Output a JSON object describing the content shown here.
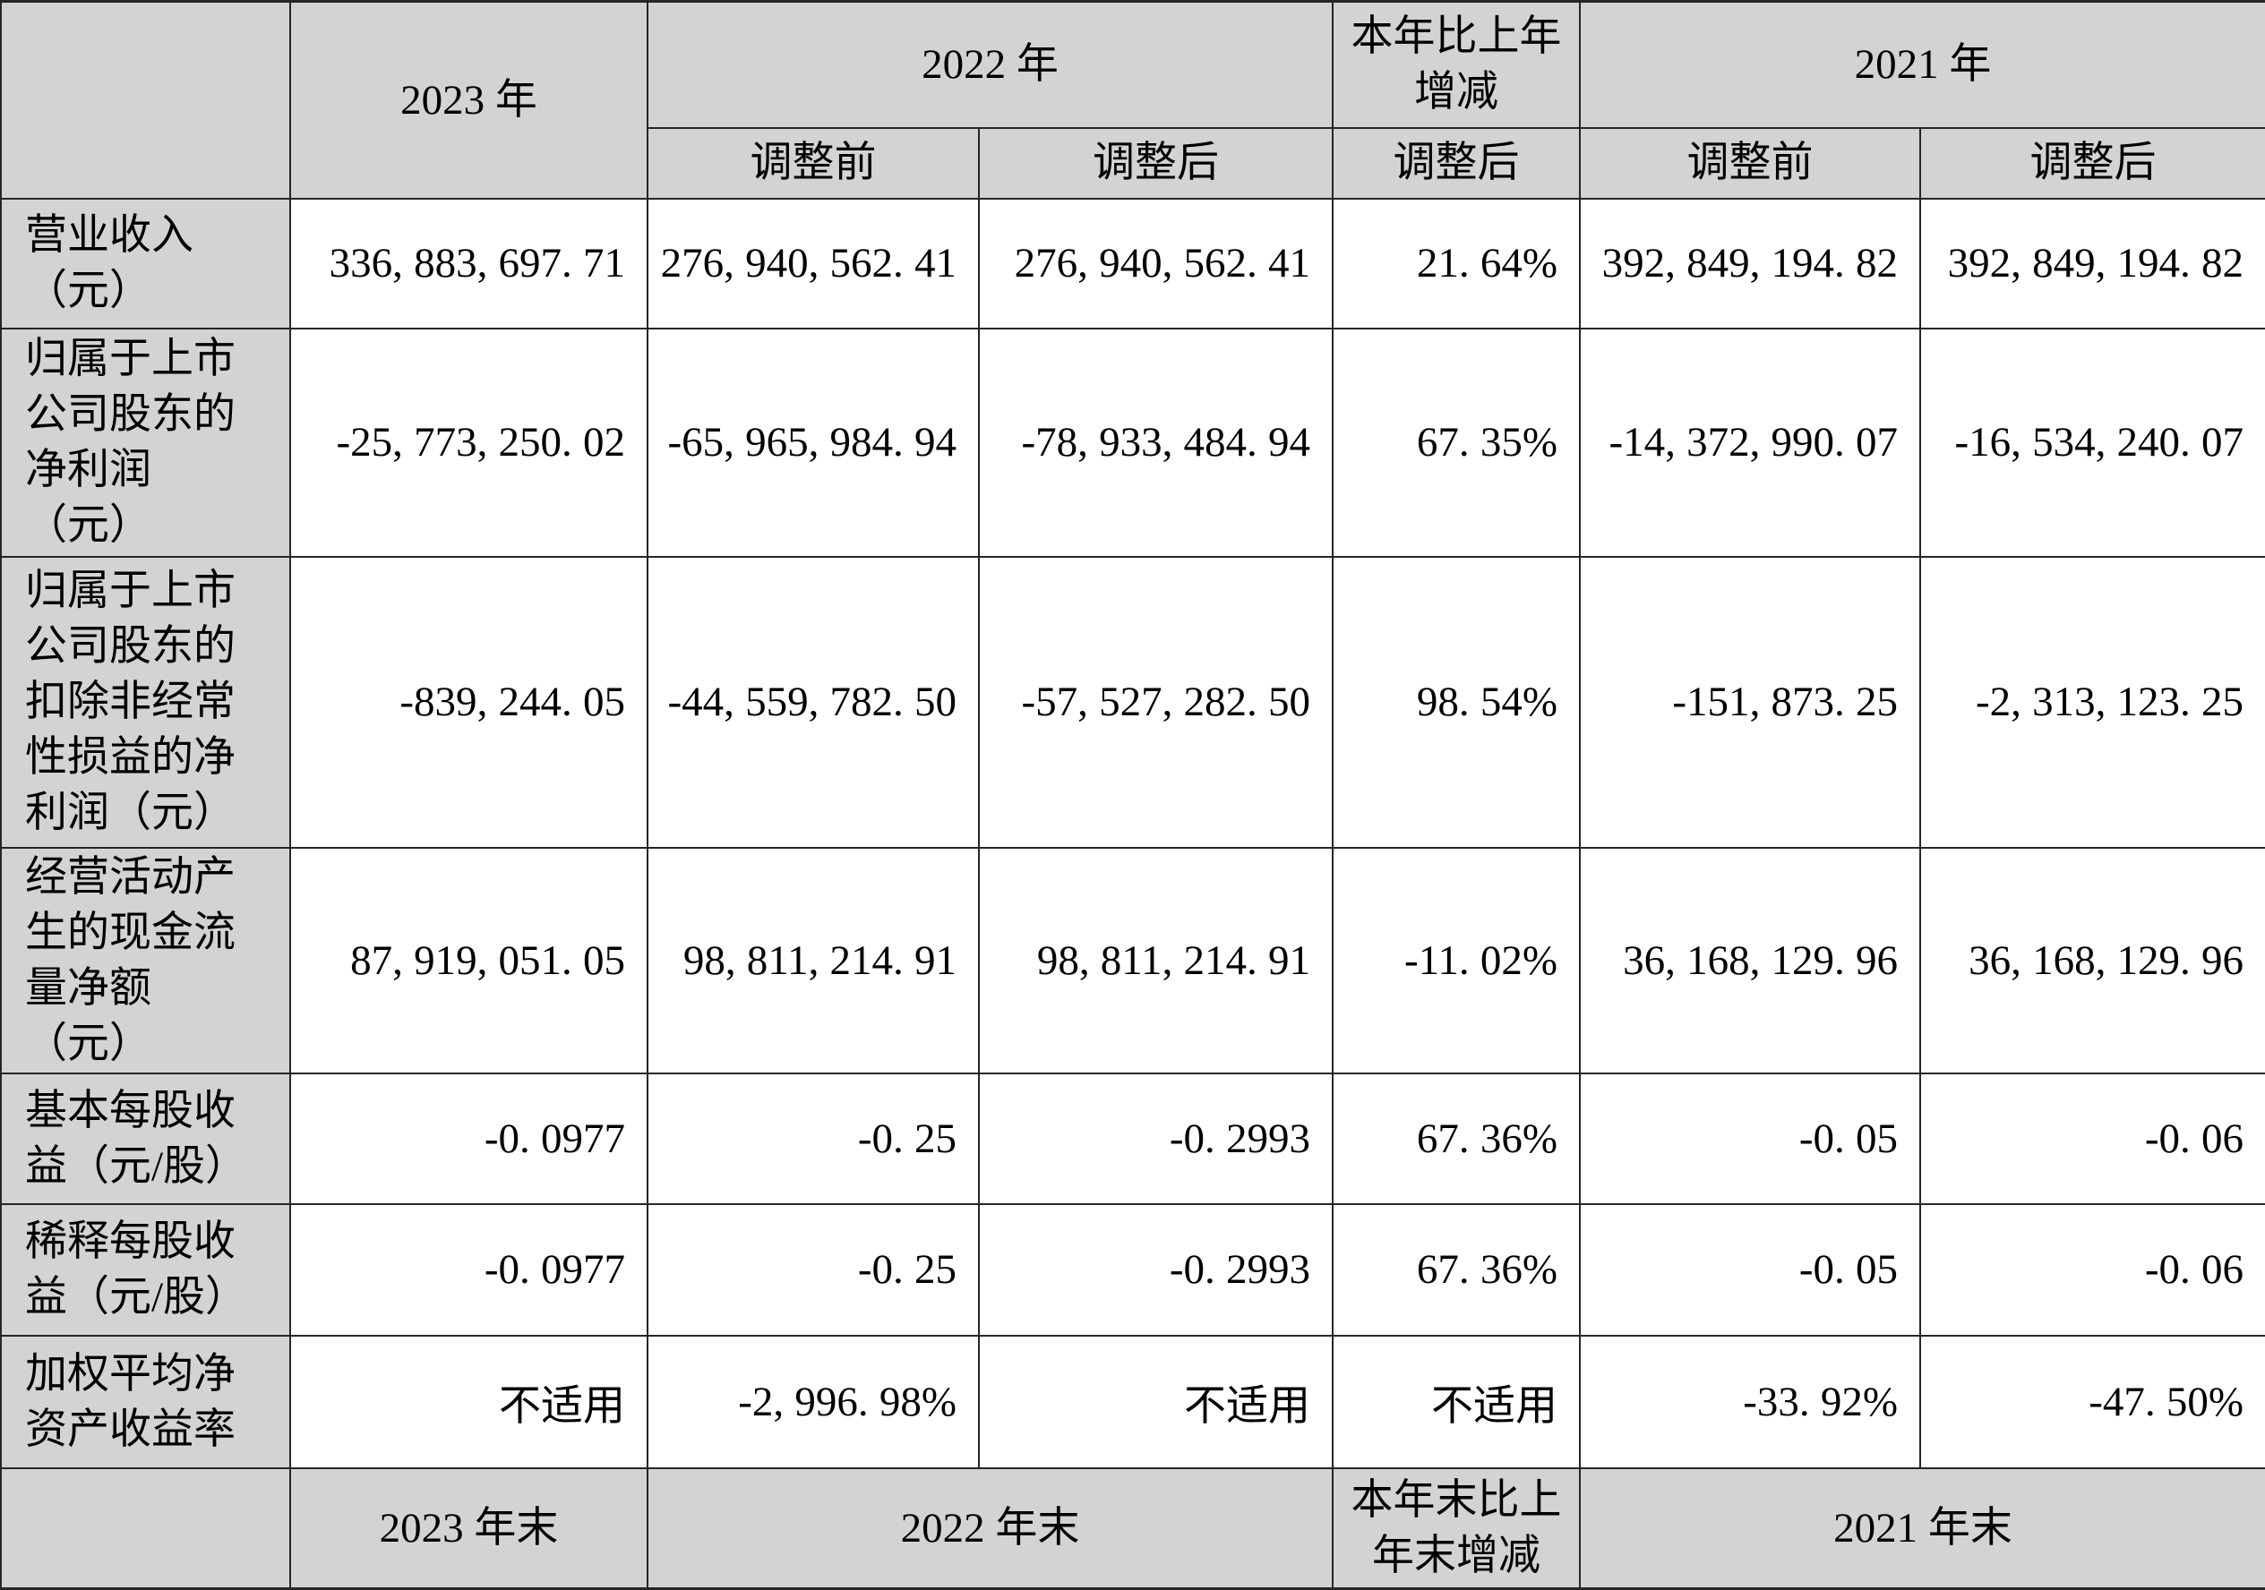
{
  "table": {
    "colors": {
      "header_bg": "#d3d3d3",
      "cell_bg": "#ffffff",
      "border": "#262626"
    },
    "header": {
      "corner": "",
      "col_2023": "2023 年",
      "col_2022": "2022 年",
      "col_yoy": "本年比上年\n增减",
      "col_2021": "2021 年",
      "sub_2022_pre": "调整前",
      "sub_2022_post": "调整后",
      "sub_yoy_post": "调整后",
      "sub_2021_pre": "调整前",
      "sub_2021_post": "调整后"
    },
    "rows": [
      {
        "label": "营业收入\n（元）",
        "values": [
          "336,883,697.71",
          "276,940,562.41",
          "276,940,562.41",
          "21.64%",
          "392,849,194.82",
          "392,849,194.82"
        ]
      },
      {
        "label": "归属于上市\n公司股东的\n净利润\n（元）",
        "values": [
          "-25,773,250.02",
          "-65,965,984.94",
          "-78,933,484.94",
          "67.35%",
          "-14,372,990.07",
          "-16,534,240.07"
        ]
      },
      {
        "label": "归属于上市\n公司股东的\n扣除非经常\n性损益的净\n利润（元）",
        "values": [
          "-839,244.05",
          "-44,559,782.50",
          "-57,527,282.50",
          "98.54%",
          "-151,873.25",
          "-2,313,123.25"
        ]
      },
      {
        "label": "经营活动产\n生的现金流\n量净额\n（元）",
        "values": [
          "87,919,051.05",
          "98,811,214.91",
          "98,811,214.91",
          "-11.02%",
          "36,168,129.96",
          "36,168,129.96"
        ]
      },
      {
        "label": "基本每股收\n益（元/股）",
        "values": [
          "-0.0977",
          "-0.25",
          "-0.2993",
          "67.36%",
          "-0.05",
          "-0.06"
        ]
      },
      {
        "label": "稀释每股收\n益（元/股）",
        "values": [
          "-0.0977",
          "-0.25",
          "-0.2993",
          "67.36%",
          "-0.05",
          "-0.06"
        ]
      },
      {
        "label": "加权平均净\n资产收益率",
        "values": [
          "不适用",
          "-2,996.98%",
          "不适用",
          "不适用",
          "-33.92%",
          "-47.50%"
        ]
      }
    ],
    "footer": {
      "corner": "",
      "col_2023": "2023 年末",
      "col_2022": "2022 年末",
      "col_yoy": "本年末比上\n年末增减",
      "col_2021": "2021 年末"
    }
  }
}
